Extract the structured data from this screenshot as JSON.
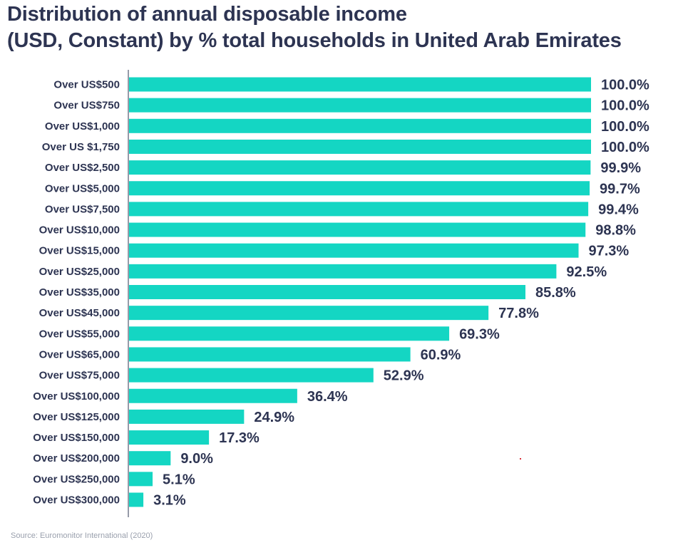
{
  "title_line1": "Distribution of annual disposable income",
  "title_line2": "(USD, Constant) by % total households in United Arab Emirates",
  "source": "Source: Euromonitor International (2020)",
  "colors": {
    "bar": "#14d6c3",
    "text": "#2d3452",
    "axis": "#2d3452",
    "source": "#9aa0ad"
  },
  "chart_data": {
    "type": "bar",
    "orientation": "horizontal",
    "title": "Distribution of annual disposable income (USD, Constant) by % total households in United Arab Emirates",
    "xlabel": "",
    "ylabel": "",
    "xlim": [
      0,
      100
    ],
    "grid": false,
    "legend": "none",
    "categories": [
      "Over US$500",
      "Over US$750",
      "Over US$1,000",
      "Over US $1,750",
      "Over US$2,500",
      "Over US$5,000",
      "Over US$7,500",
      "Over US$10,000",
      "Over US$15,000",
      "Over US$25,000",
      "Over US$35,000",
      "Over US$45,000",
      "Over US$55,000",
      "Over US$65,000",
      "Over US$75,000",
      "Over US$100,000",
      "Over US$125,000",
      "Over US$150,000",
      "Over US$200,000",
      "Over US$250,000",
      "Over US$300,000"
    ],
    "values": [
      100.0,
      100.0,
      100.0,
      100.0,
      99.9,
      99.7,
      99.4,
      98.8,
      97.3,
      92.5,
      85.8,
      77.8,
      69.3,
      60.9,
      52.9,
      36.4,
      24.9,
      17.3,
      9.0,
      5.1,
      3.1
    ],
    "value_labels": [
      "100.0%",
      "100.0%",
      "100.0%",
      "100.0%",
      "99.9%",
      "99.7%",
      "99.4%",
      "98.8%",
      "97.3%",
      "92.5%",
      "85.8%",
      "77.8%",
      "69.3%",
      "60.9%",
      "52.9%",
      "36.4%",
      "24.9%",
      "17.3%",
      "9.0%",
      "5.1%",
      "3.1%"
    ]
  }
}
